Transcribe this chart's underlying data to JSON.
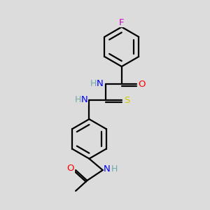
{
  "background_color": "#dcdcdc",
  "atom_colors": {
    "C": "#000000",
    "H": "#6fa8a8",
    "N": "#0000ff",
    "O": "#ff0000",
    "F": "#cc00cc",
    "S": "#cccc00"
  },
  "bond_color": "#000000",
  "bond_width": 1.6,
  "figsize": [
    3.0,
    3.0
  ],
  "dpi": 100
}
